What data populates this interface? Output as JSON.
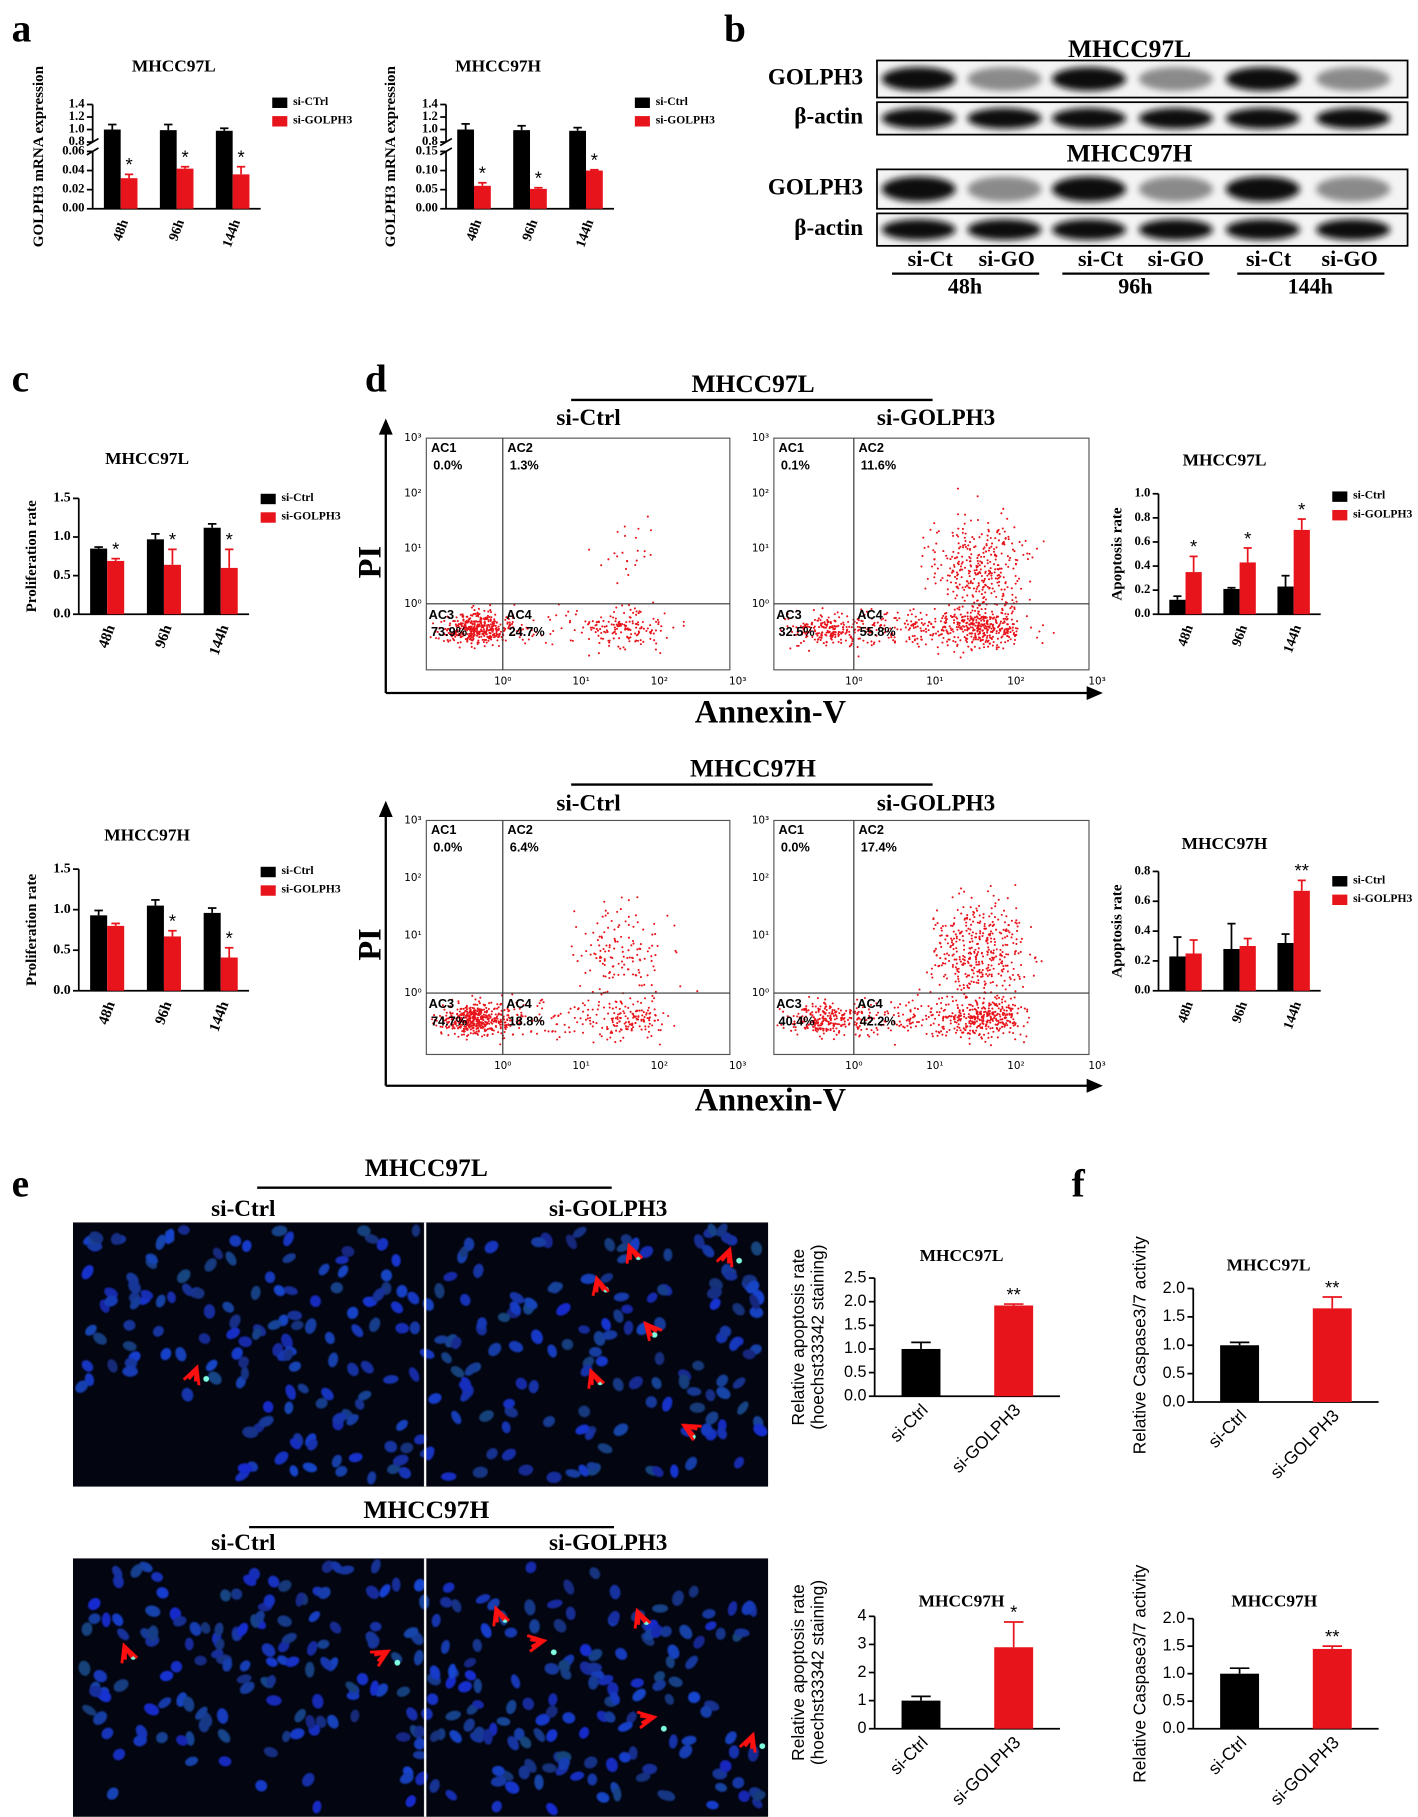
{
  "panel_labels": [
    "a",
    "b",
    "c",
    "d",
    "e",
    "f"
  ],
  "chart_data": [
    {
      "type": "bar",
      "title": "MHCC97L",
      "y_label": "GOLPH3 mRNA expression",
      "categories": [
        "48h",
        "96h",
        "144h"
      ],
      "series": [
        {
          "name": "si-CTrl",
          "color": "#000000",
          "values": [
            1,
            0.99,
            0.98
          ],
          "errors": [
            0.08,
            0.09,
            0.04
          ]
        },
        {
          "name": "si-GOLPH3",
          "color": "#e8141b",
          "values": [
            0.032,
            0.042,
            0.036
          ],
          "errors": [
            0.004,
            0.002,
            0.008
          ],
          "annotations": [
            "*",
            "*",
            "*"
          ]
        }
      ],
      "ylim": [
        0,
        0.06
      ],
      "yticks": [
        {
          "value": 0,
          "label": "0.00"
        },
        0.02,
        0.04,
        0.06
      ],
      "ylim_upper": [
        0.8,
        1.4
      ],
      "yticks_upper": [
        0.8,
        {
          "value": 1,
          "label": "1.0"
        },
        1.2,
        1.4
      ]
    },
    {
      "type": "bar",
      "title": "MHCC97H",
      "y_label": "GOLPH3 mRNA expression",
      "categories": [
        "48h",
        "96h",
        "144h"
      ],
      "series": [
        {
          "name": "si-Ctrl",
          "color": "#000000",
          "values": [
            1,
            0.99,
            0.98
          ],
          "errors": [
            0.09,
            0.07,
            0.05
          ]
        },
        {
          "name": "si-GOLPH3",
          "color": "#e8141b",
          "values": [
            0.06,
            0.052,
            0.1
          ],
          "errors": [
            0.008,
            0.003,
            0.002
          ],
          "annotations": [
            "*",
            "*",
            "*"
          ]
        }
      ],
      "ylim": [
        0,
        0.15
      ],
      "yticks": [
        {
          "value": 0,
          "label": "0.00"
        },
        0.05,
        {
          "value": 0.1,
          "label": "0.10"
        },
        0.15
      ],
      "ylim_upper": [
        0.8,
        1.4
      ],
      "yticks_upper": [
        0.8,
        {
          "value": 1,
          "label": "1.0"
        },
        1.2,
        1.4
      ]
    },
    {
      "type": "bar",
      "title": "MHCC97L",
      "y_label": "Proliferation rate",
      "categories": [
        "48h",
        "96h",
        "144h"
      ],
      "series": [
        {
          "name": "si-Ctrl",
          "color": "#000000",
          "values": [
            0.85,
            0.97,
            1.12
          ],
          "errors": [
            0.02,
            0.07,
            0.05
          ]
        },
        {
          "name": "si-GOLPH3",
          "color": "#e8141b",
          "values": [
            0.69,
            0.64,
            0.6
          ],
          "errors": [
            0.03,
            0.2,
            0.24
          ],
          "annotations": [
            "*",
            "*",
            "*"
          ]
        }
      ],
      "ylim": [
        0,
        1.5
      ],
      "yticks": [
        {
          "value": 0,
          "label": "0.0"
        },
        0.5,
        {
          "value": 1,
          "label": "1.0"
        },
        1.5
      ]
    },
    {
      "type": "bar",
      "title": "MHCC97H",
      "y_label": "Proliferation rate",
      "categories": [
        "48h",
        "96h",
        "144h"
      ],
      "series": [
        {
          "name": "si-Ctrl",
          "color": "#000000",
          "values": [
            0.93,
            1.05,
            0.96
          ],
          "errors": [
            0.06,
            0.07,
            0.06
          ]
        },
        {
          "name": "si-GOLPH3",
          "color": "#e8141b",
          "values": [
            0.8,
            0.67,
            0.41
          ],
          "errors": [
            0.03,
            0.07,
            0.12
          ],
          "annotations": [
            null,
            "*",
            "*"
          ]
        }
      ],
      "ylim": [
        0,
        1.5
      ],
      "yticks": [
        {
          "value": 0,
          "label": "0.0"
        },
        0.5,
        {
          "value": 1,
          "label": "1.0"
        },
        1.5
      ]
    },
    {
      "type": "bar",
      "title": "MHCC97L",
      "y_label": "Apoptosis rate",
      "categories": [
        "48h",
        "96h",
        "144h"
      ],
      "series": [
        {
          "name": "si-Ctrl",
          "color": "#000000",
          "values": [
            0.12,
            0.21,
            0.23
          ],
          "errors": [
            0.03,
            0.01,
            0.09
          ]
        },
        {
          "name": "si-GOLPH3",
          "color": "#e8141b",
          "values": [
            0.35,
            0.43,
            0.7
          ],
          "errors": [
            0.13,
            0.12,
            0.09
          ],
          "annotations": [
            "*",
            "*",
            "*"
          ]
        }
      ],
      "ylim": [
        0,
        1
      ],
      "yticks": [
        {
          "value": 0,
          "label": "0.0"
        },
        0.2,
        0.4,
        0.6,
        0.8,
        {
          "value": 1,
          "label": "1.0"
        }
      ]
    },
    {
      "type": "bar",
      "title": "MHCC97H",
      "y_label": "Apoptosis rate",
      "categories": [
        "48h",
        "96h",
        "144h"
      ],
      "series": [
        {
          "name": "si-Ctrl",
          "color": "#000000",
          "values": [
            0.23,
            0.28,
            0.32
          ],
          "errors": [
            0.13,
            0.17,
            0.06
          ]
        },
        {
          "name": "si-GOLPH3",
          "color": "#e8141b",
          "values": [
            0.25,
            0.3,
            0.67
          ],
          "errors": [
            0.09,
            0.05,
            0.07
          ],
          "annotations": [
            null,
            null,
            "**"
          ]
        }
      ],
      "ylim": [
        0,
        0.8
      ],
      "yticks": [
        {
          "value": 0,
          "label": "0.0"
        },
        0.2,
        0.4,
        0.6,
        0.8
      ]
    },
    {
      "type": "bar",
      "title": "MHCC97L",
      "y_label": [
        "Relative apoptosis rate",
        "(hoechst33342 staining)"
      ],
      "categories": [
        "si-Ctrl",
        "si-GOLPH3"
      ],
      "series": [
        {
          "colors": [
            "#000000",
            "#e8141b"
          ],
          "values": [
            1,
            1.92
          ],
          "errors": [
            0.14,
            0.03
          ],
          "annotations": [
            null,
            "**"
          ]
        }
      ],
      "ylim": [
        0,
        2.5
      ],
      "yticks": [
        {
          "value": 0,
          "label": "0.0"
        },
        0.5,
        {
          "value": 1,
          "label": "1.0"
        },
        1.5,
        {
          "value": 2,
          "label": "2.0"
        },
        2.5
      ]
    },
    {
      "type": "bar",
      "title": "MHCC97H",
      "y_label": [
        "Relative apoptosis rate",
        "(hoechst33342 staining)"
      ],
      "categories": [
        "si-Ctrl",
        "si-GOLPH3"
      ],
      "series": [
        {
          "colors": [
            "#000000",
            "#e8141b"
          ],
          "values": [
            1,
            2.9
          ],
          "errors": [
            0.15,
            0.9
          ],
          "annotations": [
            null,
            "*"
          ]
        }
      ],
      "ylim": [
        0,
        4
      ],
      "yticks": [
        0,
        1,
        2,
        3,
        4
      ]
    },
    {
      "type": "bar",
      "title": "MHCC97L",
      "y_label": "Relative Caspase3/7 activity",
      "categories": [
        "si-Ctrl",
        "si-GOLPH3"
      ],
      "series": [
        {
          "colors": [
            "#000000",
            "#e8141b"
          ],
          "values": [
            1,
            1.65
          ],
          "errors": [
            0.05,
            0.2
          ],
          "annotations": [
            null,
            "**"
          ]
        }
      ],
      "ylim": [
        0,
        2
      ],
      "yticks": [
        {
          "value": 0,
          "label": "0.0"
        },
        0.5,
        {
          "value": 1,
          "label": "1.0"
        },
        1.5,
        {
          "value": 2,
          "label": "2.0"
        }
      ]
    },
    {
      "type": "bar",
      "title": "MHCC97H",
      "y_label": "Relative Caspase3/7 activity",
      "categories": [
        "si-Ctrl",
        "si-GOLPH3"
      ],
      "series": [
        {
          "colors": [
            "#000000",
            "#e8141b"
          ],
          "values": [
            1,
            1.45
          ],
          "errors": [
            0.1,
            0.05
          ],
          "annotations": [
            null,
            "**"
          ]
        }
      ],
      "ylim": [
        0,
        2
      ],
      "yticks": [
        {
          "value": 0,
          "label": "0.0"
        },
        0.5,
        {
          "value": 1,
          "label": "1.0"
        },
        1.5,
        {
          "value": 2,
          "label": "2.0"
        }
      ]
    }
  ],
  "western_blot": {
    "blots": [
      {
        "title": "MHCC97L",
        "rows": [
          "GOLPH3",
          "β-actin"
        ]
      },
      {
        "title": "MHCC97H",
        "rows": [
          "GOLPH3",
          "β-actin"
        ]
      }
    ],
    "lanes": [
      "si-Ct",
      "si-GO",
      "si-Ct",
      "si-GO",
      "si-Ct",
      "si-GO"
    ],
    "timepoints": [
      "48h",
      "96h",
      "144h"
    ]
  },
  "flow_cytometry": {
    "y_label": "PI",
    "x_label": "Annexin-V",
    "ticks": [
      "10⁰",
      "10¹",
      "10²",
      "10³"
    ],
    "groups": [
      {
        "title": "MHCC97L",
        "plots": [
          {
            "title": "si-Ctrl",
            "quadrants": [
              {
                "name": "AC1",
                "value": "0.0%"
              },
              {
                "name": "AC2",
                "value": "1.3%"
              },
              {
                "name": "AC3",
                "value": "73.9%"
              },
              {
                "name": "AC4",
                "value": "24.7%"
              }
            ]
          },
          {
            "title": "si-GOLPH3",
            "quadrants": [
              {
                "name": "AC1",
                "value": "0.1%"
              },
              {
                "name": "AC2",
                "value": "11.6%"
              },
              {
                "name": "AC3",
                "value": "32.5%"
              },
              {
                "name": "AC4",
                "value": "55.8%"
              }
            ]
          }
        ]
      },
      {
        "title": "MHCC97H",
        "plots": [
          {
            "title": "si-Ctrl",
            "quadrants": [
              {
                "name": "AC1",
                "value": "0.0%"
              },
              {
                "name": "AC2",
                "value": "6.4%"
              },
              {
                "name": "AC3",
                "value": "74.7%"
              },
              {
                "name": "AC4",
                "value": "18.8%"
              }
            ]
          },
          {
            "title": "si-GOLPH3",
            "quadrants": [
              {
                "name": "AC1",
                "value": "0.0%"
              },
              {
                "name": "AC2",
                "value": "17.4%"
              },
              {
                "name": "AC3",
                "value": "40.4%"
              },
              {
                "name": "AC4",
                "value": "42.2%"
              }
            ]
          }
        ]
      }
    ]
  },
  "microscopy": {
    "groups": [
      {
        "title": "MHCC97L",
        "conditions": [
          "si-Ctrl",
          "si-GOLPH3"
        ]
      },
      {
        "title": "MHCC97H",
        "conditions": [
          "si-Ctrl",
          "si-GOLPH3"
        ]
      }
    ]
  }
}
